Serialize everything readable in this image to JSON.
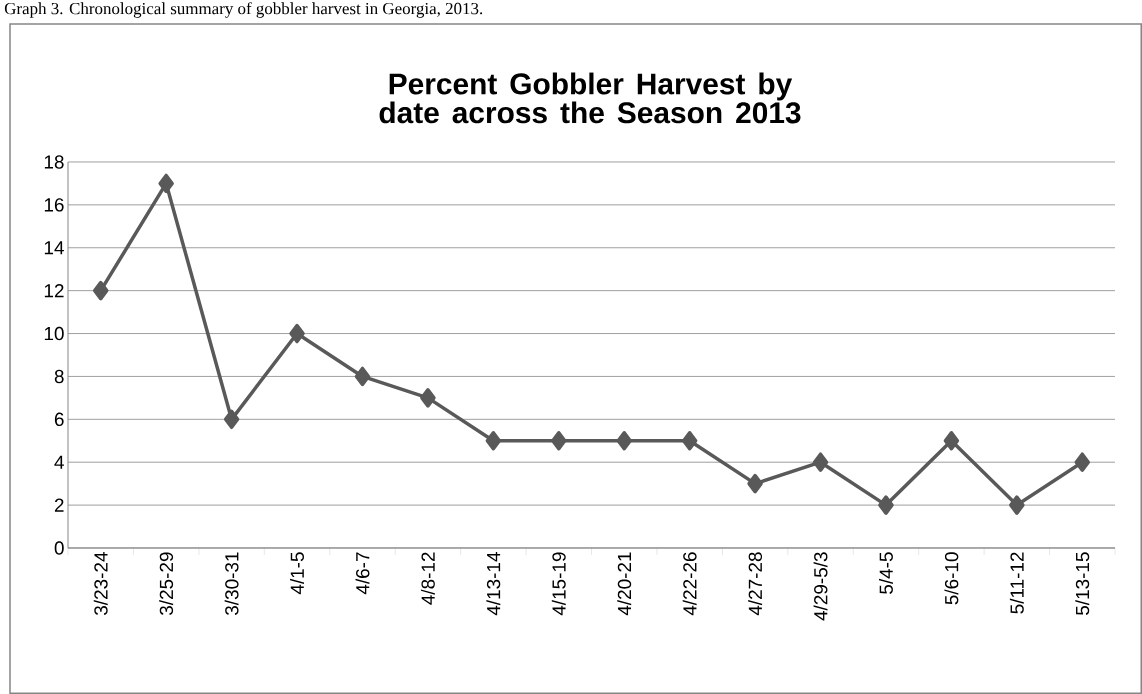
{
  "chart_data": {
    "type": "line",
    "title": "Percent Gobbler Harvest by date across the Season 2013",
    "annotations": [
      "Graph 3. Chronological summary of gobbler harvest in Georgia, 2013."
    ],
    "categories": [
      "3/23-24",
      "3/25-29",
      "3/30-31",
      "4/1-5",
      "4/6-7",
      "4/8-12",
      "4/13-14",
      "4/15-19",
      "4/20-21",
      "4/22-26",
      "4/27-28",
      "4/29-5/3",
      "5/4-5",
      "5/6-10",
      "5/11-12",
      "5/13-15"
    ],
    "series": [
      {
        "color": "#595959",
        "values": [
          12,
          17,
          6,
          10,
          8,
          7,
          5,
          5,
          5,
          5,
          3,
          4,
          2,
          5,
          2,
          4
        ]
      }
    ],
    "ylim": [
      0,
      18
    ],
    "yticks": [
      0,
      2,
      4,
      6,
      8,
      10,
      12,
      14,
      16,
      18
    ],
    "grid": "y",
    "marker": "diamond",
    "line_style": "solid"
  }
}
